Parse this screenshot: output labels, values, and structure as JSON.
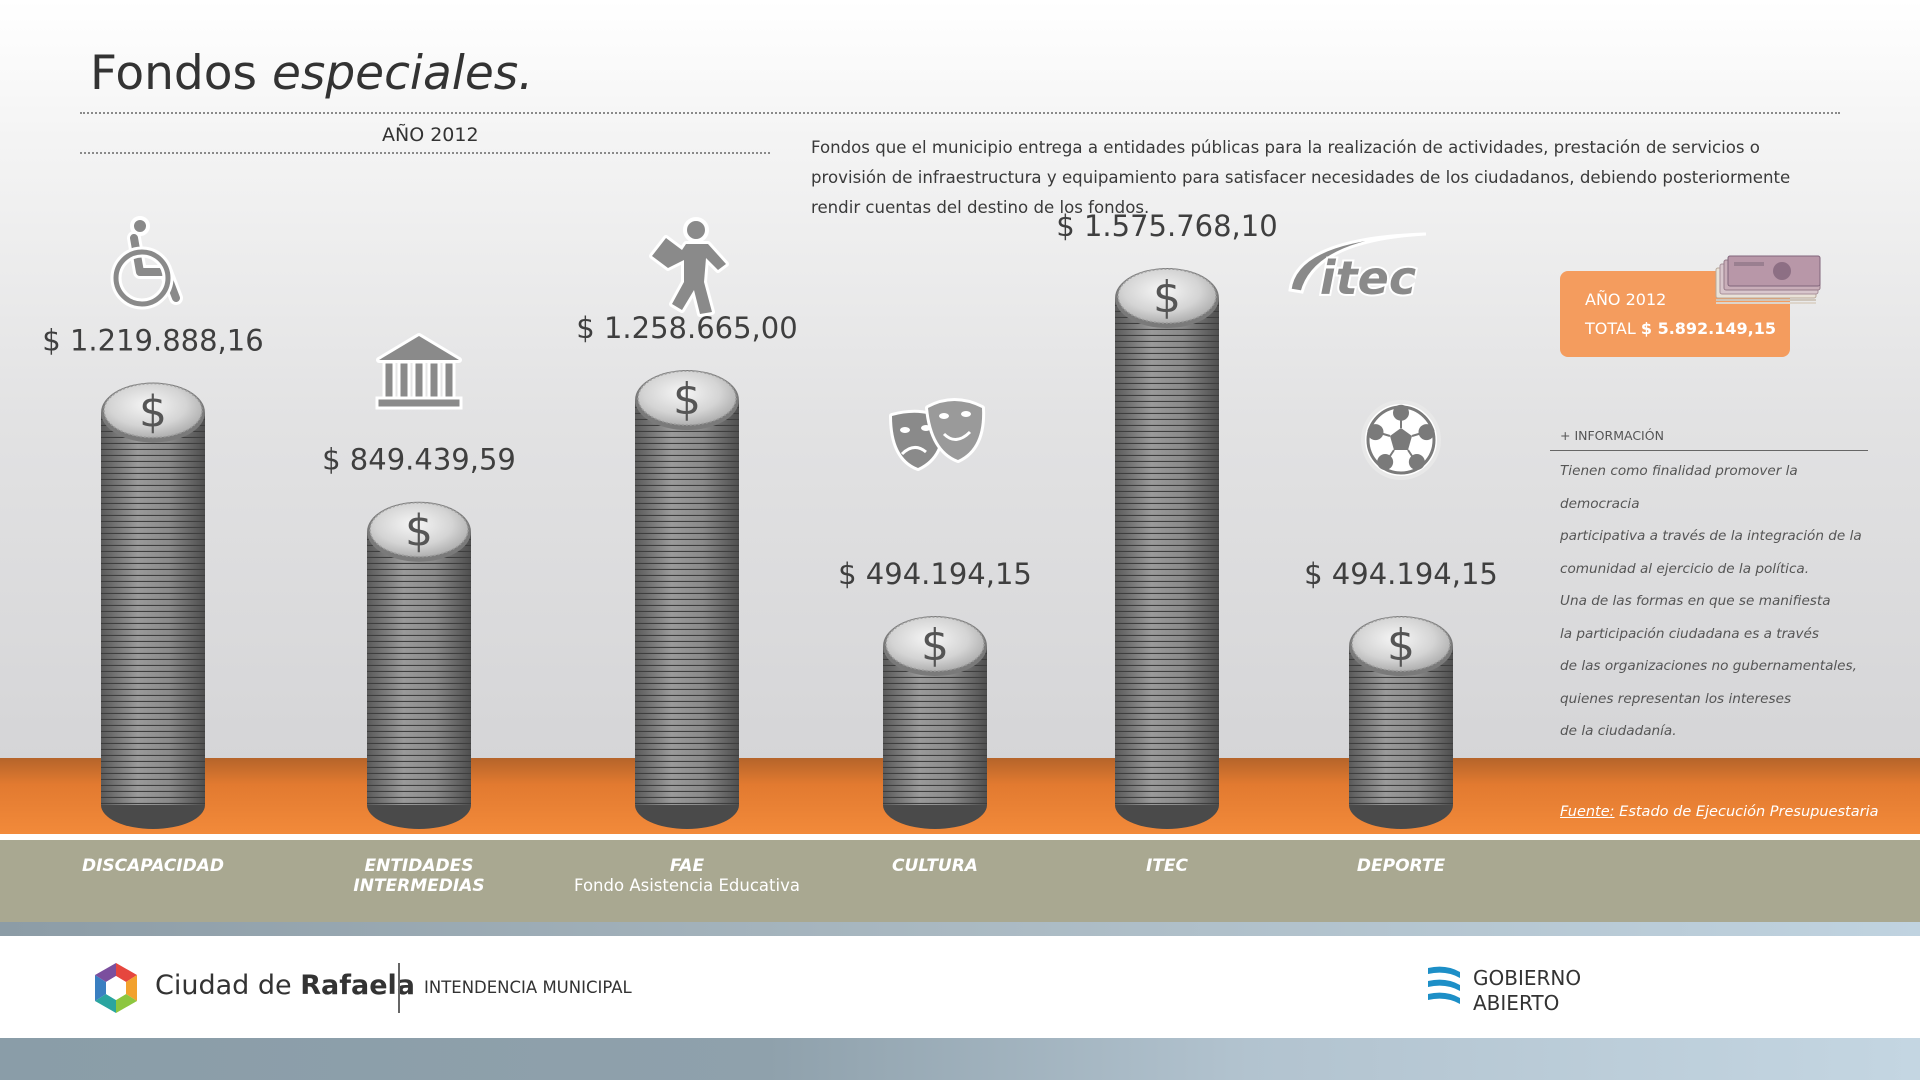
{
  "title": {
    "main": "Fondos",
    "italic": "especiales."
  },
  "year_label": "AÑO 2012",
  "description": "Fondos que el municipio entrega a entidades públicas para la realización de actividades, prestación de servicios o provisión de infraestructura y equipamiento para satisfacer necesidades de los ciudadanos, debiendo posteriormente rendir cuentas del destino de los fondos.",
  "chart_data": {
    "type": "bar",
    "categories": [
      "DISCAPACIDAD",
      "ENTIDADES INTERMEDIAS",
      "FAE",
      "CULTURA",
      "ITEC",
      "DEPORTE"
    ],
    "category_lines": [
      [
        "DISCAPACIDAD"
      ],
      [
        "ENTIDADES",
        "INTERMEDIAS"
      ],
      [
        "FAE"
      ],
      [
        "CULTURA"
      ],
      [
        "ITEC"
      ],
      [
        "DEPORTE"
      ]
    ],
    "category_subtitles": [
      "",
      "",
      "Fondo Asistencia Educativa",
      "",
      "",
      ""
    ],
    "values": [
      1219888.16,
      849439.59,
      1258665.0,
      494194.15,
      1575768.1,
      494194.15
    ],
    "value_labels": [
      "$ 1.219.888,16",
      "$ 849.439,59",
      "$ 1.258.665,00",
      "$ 494.194,15",
      "$ 1.575.768,10",
      "$ 494.194,15"
    ],
    "icons": [
      "wheelchair-icon",
      "institution-icon",
      "student-icon",
      "theater-masks-icon",
      "itec-logo-icon",
      "soccer-ball-icon"
    ],
    "itec_logo_text": "itec",
    "coin_symbol": "$",
    "bar_style": "coin-stacks",
    "ylim": [
      0,
      1600000
    ]
  },
  "total_box": {
    "year": "AÑO 2012",
    "total_label": "TOTAL",
    "total_value": "$ 5.892.149,15",
    "color": "#f49c5e"
  },
  "info": {
    "heading": "+ INFORMACIÓN",
    "lines": [
      "Tienen como finalidad promover la democracia",
      "participativa a través de la integración de la",
      "comunidad al ejercicio de la política.",
      "Una de las formas en que se manifiesta",
      "la participación ciudadana es a través",
      "de las organizaciones no gubernamentales,",
      "quienes representan los intereses",
      "de la ciudadanía."
    ]
  },
  "source": {
    "label": "Fuente:",
    "text": " Estado de Ejecución Presupuestaria"
  },
  "footer": {
    "city_prefix": "Ciudad de ",
    "city_bold": "Rafaela",
    "intendencia": "INTENDENCIA MUNICIPAL",
    "gobierno_line1": "GOBIERNO",
    "gobierno_line2": "ABIERTO"
  },
  "colors": {
    "orange_band": "#f28a3a",
    "grey_band": "#a9a891",
    "coin": "#8d8d8d",
    "text": "#3a3a3a"
  }
}
